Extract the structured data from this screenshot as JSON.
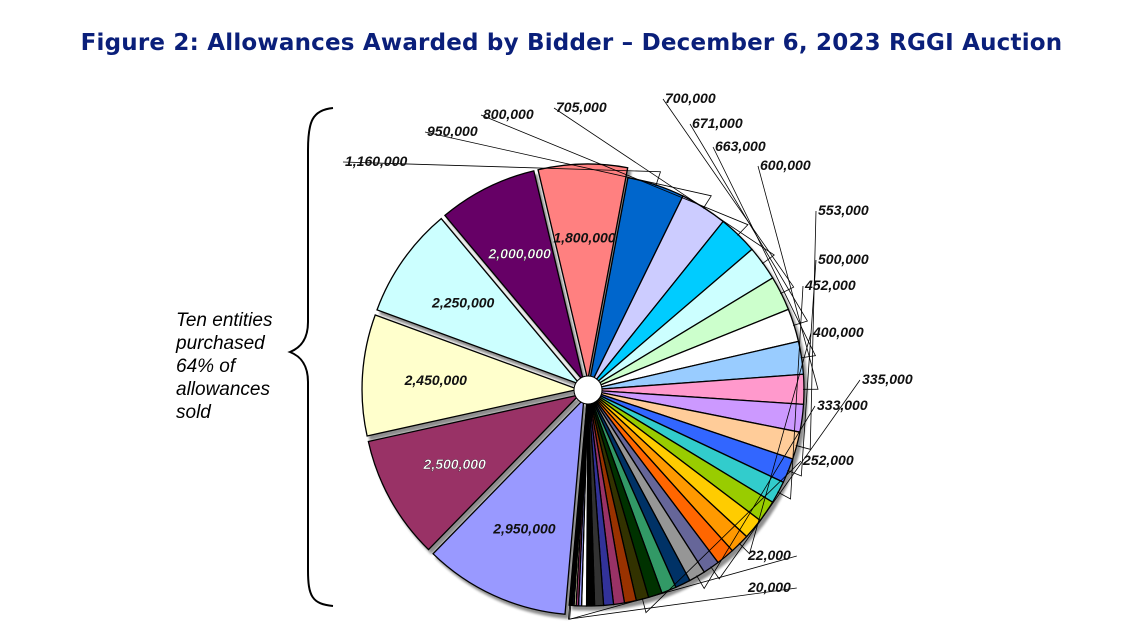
{
  "title": "Figure 2: Allowances Awarded by Bidder – December 6, 2023 RGGI Auction",
  "annotation": {
    "lines": [
      "Ten entities",
      "purchased",
      "64% of",
      "allowances",
      "sold"
    ]
  },
  "chart_data": {
    "type": "pie",
    "title": "Figure 2: Allowances Awarded by Bidder – December 6, 2023 RGGI Auction",
    "slices": [
      {
        "value": 2950000,
        "label": "2,950,000",
        "color": "#9999ff",
        "exploded": true
      },
      {
        "value": 2500000,
        "label": "2,500,000",
        "color": "#993366",
        "exploded": true
      },
      {
        "value": 2450000,
        "label": "2,450,000",
        "color": "#ffffcc",
        "exploded": true
      },
      {
        "value": 2250000,
        "label": "2,250,000",
        "color": "#ccffff",
        "exploded": true
      },
      {
        "value": 2000000,
        "label": "2,000,000",
        "color": "#660066",
        "exploded": true
      },
      {
        "value": 1800000,
        "label": "1,800,000",
        "color": "#ff8080",
        "exploded": true
      },
      {
        "value": 1160000,
        "label": "1,160,000",
        "color": "#0066cc",
        "exploded": false
      },
      {
        "value": 950000,
        "label": "950,000",
        "color": "#ccccff",
        "exploded": false
      },
      {
        "value": 800000,
        "label": "800,000",
        "color": "#00ccff",
        "exploded": false
      },
      {
        "value": 705000,
        "label": "705,000",
        "color": "#ccffff",
        "exploded": false
      },
      {
        "value": 700000,
        "label": "700,000",
        "color": "#ccffcc",
        "exploded": false
      },
      {
        "value": 671000,
        "label": "671,000",
        "color": "#ffffff",
        "exploded": false
      },
      {
        "value": 663000,
        "label": "663,000",
        "color": "#99ccff",
        "exploded": false
      },
      {
        "value": 600000,
        "label": "600,000",
        "color": "#ff99cc",
        "exploded": false
      },
      {
        "value": 560000,
        "label": "",
        "color": "#cc99ff",
        "exploded": false
      },
      {
        "value": 553000,
        "label": "553,000",
        "color": "#ffcc99",
        "exploded": false
      },
      {
        "value": 500000,
        "label": "500,000",
        "color": "#3366ff",
        "exploded": false
      },
      {
        "value": 452000,
        "label": "452,000",
        "color": "#33cccc",
        "exploded": false
      },
      {
        "value": 440000,
        "label": "",
        "color": "#99cc00",
        "exploded": false
      },
      {
        "value": 420000,
        "label": "",
        "color": "#ffcc00",
        "exploded": false
      },
      {
        "value": 400000,
        "label": "400,000",
        "color": "#ff9900",
        "exploded": false
      },
      {
        "value": 370000,
        "label": "",
        "color": "#ff6600",
        "exploded": false
      },
      {
        "value": 335000,
        "label": "335,000",
        "color": "#666699",
        "exploded": false
      },
      {
        "value": 333000,
        "label": "333,000",
        "color": "#969696",
        "exploded": false
      },
      {
        "value": 310000,
        "label": "",
        "color": "#003366",
        "exploded": false
      },
      {
        "value": 300000,
        "label": "",
        "color": "#339966",
        "exploded": false
      },
      {
        "value": 280000,
        "label": "",
        "color": "#003300",
        "exploded": false
      },
      {
        "value": 252000,
        "label": "252,000",
        "color": "#333300",
        "exploded": false
      },
      {
        "value": 240000,
        "label": "",
        "color": "#993300",
        "exploded": false
      },
      {
        "value": 220000,
        "label": "",
        "color": "#993366",
        "exploded": false
      },
      {
        "value": 200000,
        "label": "",
        "color": "#333399",
        "exploded": false
      },
      {
        "value": 180000,
        "label": "",
        "color": "#333333",
        "exploded": false
      },
      {
        "value": 160000,
        "label": "",
        "color": "#000000",
        "exploded": false
      },
      {
        "value": 100000,
        "label": "",
        "color": "#ffffff",
        "exploded": false
      },
      {
        "value": 60000,
        "label": "",
        "color": "#9999ff",
        "exploded": false
      },
      {
        "value": 50000,
        "label": "",
        "color": "#993366",
        "exploded": false
      },
      {
        "value": 40000,
        "label": "",
        "color": "#ffffcc",
        "exploded": false
      },
      {
        "value": 30000,
        "label": "",
        "color": "#333399",
        "exploded": false
      },
      {
        "value": 25000,
        "label": "",
        "color": "#660066",
        "exploded": false
      },
      {
        "value": 22000,
        "label": "22,000",
        "color": "#0066cc",
        "exploded": false
      },
      {
        "value": 20000,
        "label": "20,000",
        "color": "#ccccff",
        "exploded": false
      }
    ]
  }
}
